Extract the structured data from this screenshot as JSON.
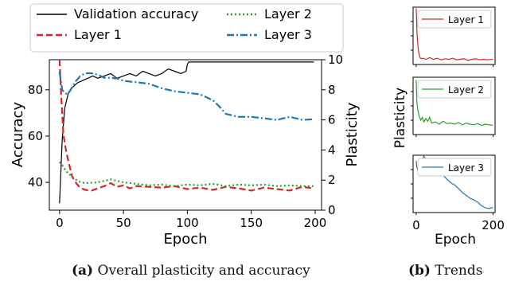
{
  "captions": {
    "a_label": "(a)",
    "a_text": "Overall plasticity and accuracy",
    "b_label": "(b)",
    "b_text": "Trends"
  },
  "colors": {
    "accuracy": "#000000",
    "layer1": "#d62728",
    "layer2": "#2ca02c",
    "layer3": "#1f77b4"
  },
  "chart_data": [
    {
      "type": "line",
      "xlabel": "Epoch",
      "ylabel": "Accuracy",
      "y2label": "Plasticity",
      "xlim": [
        -8,
        205
      ],
      "ylim": [
        28,
        93
      ],
      "y2lim": [
        0,
        10
      ],
      "xticks": [
        0,
        50,
        100,
        150,
        200
      ],
      "yticks": [
        40,
        60,
        80
      ],
      "y2ticks": [
        0,
        2,
        4,
        6,
        8,
        10
      ],
      "legend": "top (outside, two columns)",
      "series": [
        {
          "name": "Validation accuracy",
          "axis": "left",
          "style": "solid",
          "x": [
            0,
            2,
            4,
            7,
            10,
            14,
            18,
            22,
            26,
            30,
            35,
            40,
            45,
            50,
            55,
            60,
            65,
            70,
            75,
            80,
            85,
            90,
            95,
            99,
            100,
            101,
            105,
            120,
            150,
            180,
            199
          ],
          "y": [
            31,
            58,
            72,
            79,
            81,
            83,
            84,
            85,
            86,
            85,
            86,
            87,
            85,
            86,
            87,
            86,
            88,
            87,
            86,
            87,
            89,
            88,
            87,
            88,
            91,
            92,
            92,
            92,
            92,
            92,
            92
          ]
        },
        {
          "name": "Layer 1",
          "axis": "right",
          "style": "dashed",
          "x": [
            0,
            1,
            2,
            3,
            5,
            7,
            10,
            13,
            16,
            20,
            25,
            30,
            35,
            40,
            45,
            50,
            55,
            60,
            70,
            80,
            90,
            100,
            110,
            120,
            130,
            140,
            150,
            160,
            170,
            180,
            190,
            199
          ],
          "y": [
            10,
            8,
            6.5,
            5,
            4,
            3.2,
            2.2,
            1.8,
            1.5,
            1.35,
            1.3,
            1.45,
            1.6,
            1.8,
            1.55,
            1.65,
            1.45,
            1.6,
            1.55,
            1.5,
            1.6,
            1.4,
            1.5,
            1.35,
            1.55,
            1.45,
            1.3,
            1.5,
            1.4,
            1.3,
            1.55,
            1.45
          ]
        },
        {
          "name": "Layer 2",
          "axis": "right",
          "style": "dotted",
          "x": [
            0,
            2,
            5,
            10,
            15,
            20,
            30,
            40,
            50,
            60,
            70,
            80,
            90,
            100,
            110,
            120,
            130,
            140,
            150,
            160,
            170,
            180,
            190,
            199
          ],
          "y": [
            3.2,
            3.0,
            2.6,
            2.2,
            1.9,
            1.8,
            1.85,
            2.05,
            1.85,
            1.75,
            1.65,
            1.7,
            1.6,
            1.7,
            1.65,
            1.75,
            1.6,
            1.7,
            1.65,
            1.7,
            1.6,
            1.65,
            1.6,
            1.6
          ]
        },
        {
          "name": "Layer 3",
          "axis": "right",
          "style": "dashdot",
          "x": [
            0,
            1,
            2,
            4,
            6,
            8,
            12,
            16,
            20,
            25,
            30,
            35,
            40,
            45,
            50,
            60,
            70,
            80,
            90,
            100,
            110,
            120,
            125,
            130,
            140,
            150,
            160,
            170,
            180,
            190,
            199
          ],
          "y": [
            9.2,
            8.6,
            8.0,
            7.8,
            7.7,
            7.9,
            8.5,
            8.9,
            9.1,
            9.1,
            9.0,
            8.8,
            8.8,
            8.75,
            8.6,
            8.5,
            8.4,
            8.1,
            7.9,
            7.8,
            7.7,
            7.3,
            6.9,
            6.4,
            6.2,
            6.2,
            6.1,
            6.0,
            6.2,
            6.0,
            6.05
          ]
        }
      ]
    },
    {
      "type": "line",
      "subplots": 3,
      "xlabel": "Epoch",
      "ylabel": "Plasticity",
      "xlim": [
        -8,
        205
      ],
      "xticks": [
        0,
        200
      ],
      "ylim": [
        0,
        10
      ],
      "panels": [
        {
          "name": "Layer 1",
          "x": [
            0,
            1,
            2,
            3,
            5,
            7,
            10,
            14,
            18,
            25,
            35,
            45,
            55,
            65,
            75,
            85,
            95,
            105,
            115,
            125,
            135,
            145,
            155,
            165,
            175,
            185,
            199
          ],
          "y": [
            9.8,
            8.0,
            6.0,
            4.5,
            3.0,
            2.0,
            1.2,
            1.0,
            1.1,
            0.9,
            1.2,
            0.9,
            1.1,
            0.8,
            1.0,
            0.9,
            1.1,
            0.8,
            0.9,
            1.0,
            0.7,
            0.9,
            1.0,
            0.8,
            0.9,
            0.8,
            0.9
          ]
        },
        {
          "name": "Layer 2",
          "x": [
            0,
            2,
            5,
            8,
            12,
            16,
            20,
            25,
            30,
            35,
            40,
            50,
            60,
            70,
            80,
            90,
            100,
            110,
            120,
            130,
            140,
            150,
            160,
            170,
            180,
            190,
            199
          ],
          "y": [
            9.5,
            5.5,
            4.0,
            3.2,
            2.5,
            3.0,
            2.2,
            2.8,
            2.3,
            3.0,
            2.0,
            2.2,
            1.8,
            2.3,
            1.9,
            2.0,
            1.8,
            2.1,
            1.7,
            2.0,
            1.8,
            1.7,
            1.9,
            1.6,
            1.8,
            1.7,
            1.6
          ]
        },
        {
          "name": "Layer 3",
          "x": [
            0,
            2,
            5,
            10,
            15,
            20,
            25,
            30,
            35,
            40,
            50,
            60,
            70,
            80,
            90,
            100,
            110,
            120,
            130,
            140,
            150,
            160,
            170,
            180,
            190,
            199
          ],
          "y": [
            9.0,
            7.8,
            7.2,
            8.2,
            9.2,
            9.8,
            9.4,
            8.7,
            8.9,
            8.2,
            7.7,
            7.2,
            6.5,
            5.8,
            5.2,
            4.8,
            4.2,
            3.5,
            3.0,
            2.5,
            2.2,
            1.8,
            1.2,
            0.8,
            0.7,
            0.9
          ]
        }
      ]
    }
  ]
}
